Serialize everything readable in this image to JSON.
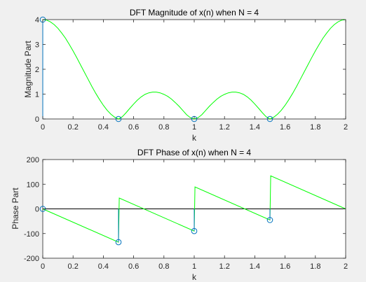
{
  "colors": {
    "background": "#f0f0f0",
    "axes_background": "#ffffff",
    "curve": "#00ff00",
    "stem_and_markers": "#0072bd",
    "zero_line": "#000000"
  },
  "chart_data": [
    {
      "type": "line",
      "title": "DFT Magnitude of x(n) when N = 4",
      "xlabel": "k",
      "ylabel": "Magnitude Part",
      "xlim": [
        0,
        2
      ],
      "ylim": [
        0,
        4
      ],
      "xticks": [
        0,
        0.2,
        0.4,
        0.6,
        0.8,
        1,
        1.2,
        1.4,
        1.6,
        1.8,
        2
      ],
      "xtick_labels": [
        "0",
        "0.2",
        "0.4",
        "0.6",
        "0.8",
        "1",
        "1.2",
        "1.4",
        "1.6",
        "1.8",
        "2"
      ],
      "yticks": [
        0,
        1,
        2,
        3,
        4
      ],
      "ytick_labels": [
        "0",
        "1",
        "2",
        "3",
        "4"
      ],
      "grid": false,
      "curve": {
        "x": [
          0,
          0.025,
          0.05,
          0.075,
          0.1,
          0.125,
          0.15,
          0.175,
          0.2,
          0.225,
          0.25,
          0.275,
          0.3,
          0.325,
          0.35,
          0.375,
          0.4,
          0.425,
          0.45,
          0.475,
          0.5,
          0.525,
          0.55,
          0.575,
          0.6,
          0.625,
          0.65,
          0.675,
          0.7,
          0.725,
          0.75,
          0.775,
          0.8,
          0.825,
          0.85,
          0.875,
          0.9,
          0.925,
          0.95,
          0.975,
          1,
          1.025,
          1.05,
          1.075,
          1.1,
          1.125,
          1.15,
          1.175,
          1.2,
          1.225,
          1.25,
          1.275,
          1.3,
          1.325,
          1.35,
          1.375,
          1.4,
          1.425,
          1.45,
          1.475,
          1.5,
          1.525,
          1.55,
          1.575,
          1.6,
          1.625,
          1.65,
          1.675,
          1.7,
          1.725,
          1.75,
          1.775,
          1.8,
          1.825,
          1.85,
          1.875,
          1.9,
          1.925,
          1.95,
          1.975,
          2
        ],
        "y": [
          4,
          3.98,
          3.91,
          3.8,
          3.65,
          3.46,
          3.25,
          3.0,
          2.74,
          2.46,
          2.17,
          1.88,
          1.59,
          1.3,
          1.03,
          0.78,
          0.55,
          0.35,
          0.19,
          0.07,
          0,
          0.09,
          0.25,
          0.43,
          0.6,
          0.76,
          0.89,
          0.99,
          1.05,
          1.08,
          1.08,
          1.05,
          0.99,
          0.91,
          0.8,
          0.66,
          0.51,
          0.34,
          0.17,
          0.05,
          0,
          0.05,
          0.17,
          0.34,
          0.51,
          0.66,
          0.8,
          0.91,
          0.99,
          1.05,
          1.08,
          1.08,
          1.05,
          0.99,
          0.89,
          0.76,
          0.6,
          0.43,
          0.25,
          0.09,
          0,
          0.07,
          0.19,
          0.35,
          0.55,
          0.78,
          1.03,
          1.3,
          1.59,
          1.88,
          2.17,
          2.46,
          2.74,
          3.0,
          3.25,
          3.46,
          3.65,
          3.8,
          3.91,
          3.98,
          4
        ]
      },
      "stems": {
        "x": [
          0,
          0.5,
          1,
          1.5
        ],
        "y": [
          4,
          0,
          0,
          0
        ]
      }
    },
    {
      "type": "line",
      "title": "DFT Phase of x(n) when N = 4",
      "xlabel": "k",
      "ylabel": "Phase Part",
      "xlim": [
        0,
        2
      ],
      "ylim": [
        -200,
        200
      ],
      "xticks": [
        0,
        0.2,
        0.4,
        0.6,
        0.8,
        1,
        1.2,
        1.4,
        1.6,
        1.8,
        2
      ],
      "xtick_labels": [
        "0",
        "0.2",
        "0.4",
        "0.6",
        "0.8",
        "1",
        "1.2",
        "1.4",
        "1.6",
        "1.8",
        "2"
      ],
      "yticks": [
        -200,
        -100,
        0,
        100,
        200
      ],
      "ytick_labels": [
        "-200",
        "-100",
        "0",
        "100",
        "200"
      ],
      "grid": false,
      "zero_line": true,
      "curve": {
        "x": [
          0,
          0.5,
          0.5,
          0.505,
          1,
          1,
          1.005,
          1.5,
          1.5,
          1.505,
          2
        ],
        "y": [
          0,
          -135,
          -135,
          44,
          -90,
          -90,
          89,
          -45,
          -45,
          134,
          0
        ]
      },
      "stems": {
        "x": [
          0,
          0.5,
          1,
          1.5
        ],
        "y": [
          0,
          -135,
          -90,
          -45
        ]
      }
    }
  ]
}
